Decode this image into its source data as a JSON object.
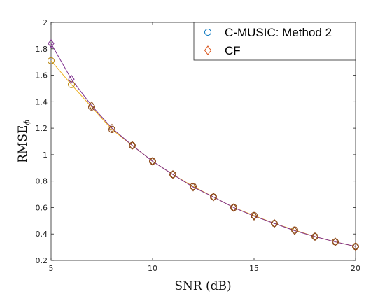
{
  "chart_data": {
    "type": "line",
    "xlabel": "SNR  (dB)",
    "ylabel_main": "RMSE",
    "ylabel_sub": "ϕ",
    "xlim": [
      5,
      20
    ],
    "ylim": [
      0.2,
      2
    ],
    "xticks": [
      5,
      10,
      15,
      20
    ],
    "yticks": [
      0.2,
      0.4,
      0.6,
      0.8,
      1,
      1.2,
      1.4,
      1.6,
      1.8,
      2
    ],
    "ytick_labels": [
      "0.2",
      "0.4",
      "0.6",
      "0.8",
      "1",
      "1.2",
      "1.4",
      "1.6",
      "1.8",
      "2"
    ],
    "grid": false,
    "legend_position": "top-right",
    "x": [
      5,
      6,
      7,
      8,
      9,
      10,
      11,
      12,
      13,
      14,
      15,
      16,
      17,
      18,
      19,
      20
    ],
    "series": [
      {
        "name": "C-MUSIC: Method 2",
        "marker": "circle",
        "marker_color": "#0072BD",
        "line_color": "#EDB120",
        "values": [
          1.71,
          1.53,
          1.36,
          1.19,
          1.07,
          0.95,
          0.85,
          0.76,
          0.68,
          0.6,
          0.54,
          0.48,
          0.43,
          0.38,
          0.34,
          0.305
        ]
      },
      {
        "name": "CF",
        "marker": "diamond",
        "marker_color": "#D95319",
        "line_color": "#7E2F8E",
        "values": [
          1.84,
          1.57,
          1.37,
          1.2,
          1.07,
          0.95,
          0.85,
          0.755,
          0.68,
          0.6,
          0.535,
          0.48,
          0.425,
          0.38,
          0.34,
          0.305
        ]
      }
    ],
    "overlay_marker_color": "#8B4513"
  }
}
